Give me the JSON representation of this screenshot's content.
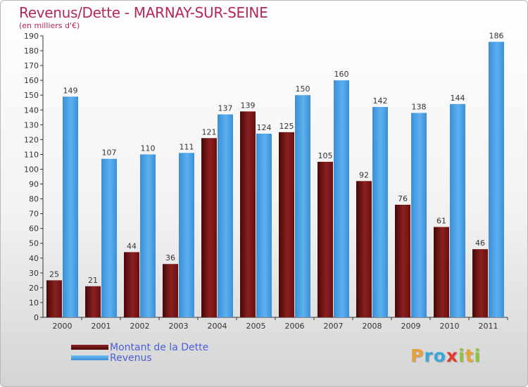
{
  "header": {
    "title": "Revenus/Dette - MARNAY-SUR-SEINE",
    "subtitle": "(en milliers d'€)"
  },
  "legend": {
    "dette_label": "Montant de la Dette",
    "revenus_label": "Revenus"
  },
  "logo": {
    "letters": [
      "P",
      "r",
      "o",
      "x",
      "i",
      "t",
      "i"
    ],
    "colors": [
      "#e8a23a",
      "#3aa7d9",
      "#3aa7d9",
      "#e23a2c",
      "#8cc540",
      "#e8a23a",
      "#8cc540"
    ]
  },
  "colors": {
    "dette": "#7a1414",
    "revenus": "#4fa3e6",
    "title": "#b5265a",
    "legend_text": "#4b5fd6"
  },
  "chart_data": {
    "type": "bar",
    "title": "Revenus/Dette - MARNAY-SUR-SEINE",
    "subtitle": "(en milliers d'€)",
    "categories": [
      "2000",
      "2001",
      "2002",
      "2003",
      "2004",
      "2005",
      "2006",
      "2007",
      "2008",
      "2009",
      "2010",
      "2011"
    ],
    "series": [
      {
        "name": "Montant de la Dette",
        "values": [
          25,
          21,
          44,
          36,
          121,
          139,
          125,
          105,
          92,
          76,
          61,
          46
        ]
      },
      {
        "name": "Revenus",
        "values": [
          149,
          107,
          110,
          111,
          137,
          124,
          150,
          160,
          142,
          138,
          144,
          186
        ]
      }
    ],
    "ylim": [
      0,
      190
    ],
    "yticks": [
      0,
      10,
      20,
      30,
      40,
      50,
      60,
      70,
      80,
      90,
      100,
      110,
      120,
      130,
      140,
      150,
      160,
      170,
      180,
      190
    ],
    "grid": false,
    "legend_position": "bottom-left"
  }
}
